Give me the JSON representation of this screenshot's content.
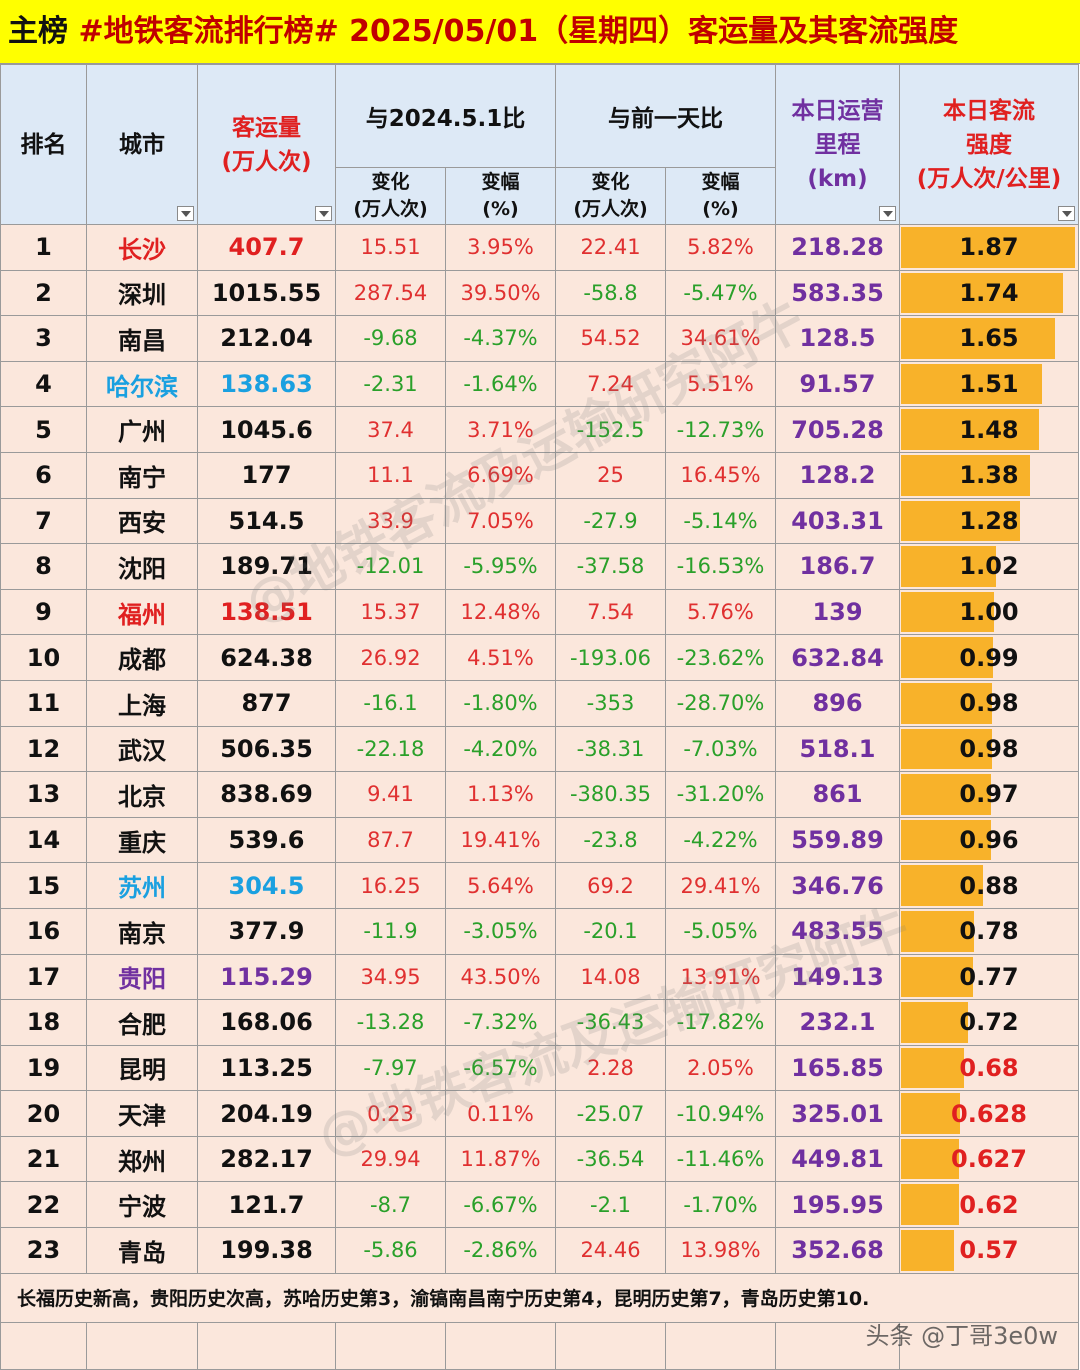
{
  "title": {
    "lead": "主榜",
    "text": " #地铁客流排行榜# 2025/05/01（星期四）客运量及其客流强度"
  },
  "colors": {
    "title_bg": "#ffff00",
    "title_text": "#c00000",
    "header_bg": "#dde9f6",
    "row_bg": "#fbe7dc",
    "positive": "#e03030",
    "negative": "#2aa02a",
    "km": "#7030a0",
    "bar": "#f8b22a",
    "city_changsha": "#e02020",
    "city_harbin": "#1aa0e0",
    "city_fuzhou": "#e02020",
    "city_suzhou": "#1aa0e0",
    "city_guiyang": "#7030a0"
  },
  "headers": {
    "rank": "排名",
    "city": "城市",
    "volume_1": "客运量",
    "volume_2": "(万人次)",
    "vs_last_year": "与2024.5.1比",
    "vs_prev_day": "与前一天比",
    "change_1": "变化",
    "change_2": "(万人次)",
    "pct_1": "变幅",
    "pct_2": "(%)",
    "change_b_1": "变化",
    "change_b_2": "(万人次)",
    "pct_b_1": "变幅",
    "pct_b_2": "(%)",
    "km_1": "本日运营",
    "km_2": "里程",
    "km_3": "(km)",
    "intensity_1": "本日客流",
    "intensity_2": "强度",
    "intensity_3": "(万人次/公里)",
    "filter_icon": "chevron-down-icon"
  },
  "rows": [
    {
      "rank": "1",
      "city": "长沙",
      "city_color": "#e02020",
      "volume": "407.7",
      "ly_change": "15.51",
      "ly_pct": "3.95%",
      "pd_change": "22.41",
      "pd_pct": "5.82%",
      "km": "218.28",
      "intensity": "1.87",
      "intensity_value": 1.87,
      "intensity_color": "#111111"
    },
    {
      "rank": "2",
      "city": "深圳",
      "city_color": "#111111",
      "volume": "1015.55",
      "ly_change": "287.54",
      "ly_pct": "39.50%",
      "pd_change": "-58.8",
      "pd_pct": "-5.47%",
      "km": "583.35",
      "intensity": "1.74",
      "intensity_value": 1.74,
      "intensity_color": "#111111"
    },
    {
      "rank": "3",
      "city": "南昌",
      "city_color": "#111111",
      "volume": "212.04",
      "ly_change": "-9.68",
      "ly_pct": "-4.37%",
      "pd_change": "54.52",
      "pd_pct": "34.61%",
      "km": "128.5",
      "intensity": "1.65",
      "intensity_value": 1.65,
      "intensity_color": "#111111"
    },
    {
      "rank": "4",
      "city": "哈尔滨",
      "city_color": "#1aa0e0",
      "volume": "138.63",
      "ly_change": "-2.31",
      "ly_pct": "-1.64%",
      "pd_change": "7.24",
      "pd_pct": "5.51%",
      "km": "91.57",
      "intensity": "1.51",
      "intensity_value": 1.51,
      "intensity_color": "#111111"
    },
    {
      "rank": "5",
      "city": "广州",
      "city_color": "#111111",
      "volume": "1045.6",
      "ly_change": "37.4",
      "ly_pct": "3.71%",
      "pd_change": "-152.5",
      "pd_pct": "-12.73%",
      "km": "705.28",
      "intensity": "1.48",
      "intensity_value": 1.48,
      "intensity_color": "#111111"
    },
    {
      "rank": "6",
      "city": "南宁",
      "city_color": "#111111",
      "volume": "177",
      "ly_change": "11.1",
      "ly_pct": "6.69%",
      "pd_change": "25",
      "pd_pct": "16.45%",
      "km": "128.2",
      "intensity": "1.38",
      "intensity_value": 1.38,
      "intensity_color": "#111111"
    },
    {
      "rank": "7",
      "city": "西安",
      "city_color": "#111111",
      "volume": "514.5",
      "ly_change": "33.9",
      "ly_pct": "7.05%",
      "pd_change": "-27.9",
      "pd_pct": "-5.14%",
      "km": "403.31",
      "intensity": "1.28",
      "intensity_value": 1.28,
      "intensity_color": "#111111"
    },
    {
      "rank": "8",
      "city": "沈阳",
      "city_color": "#111111",
      "volume": "189.71",
      "ly_change": "-12.01",
      "ly_pct": "-5.95%",
      "pd_change": "-37.58",
      "pd_pct": "-16.53%",
      "km": "186.7",
      "intensity": "1.02",
      "intensity_value": 1.02,
      "intensity_color": "#111111"
    },
    {
      "rank": "9",
      "city": "福州",
      "city_color": "#e02020",
      "volume": "138.51",
      "ly_change": "15.37",
      "ly_pct": "12.48%",
      "pd_change": "7.54",
      "pd_pct": "5.76%",
      "km": "139",
      "intensity": "1.00",
      "intensity_value": 1.0,
      "intensity_color": "#111111"
    },
    {
      "rank": "10",
      "city": "成都",
      "city_color": "#111111",
      "volume": "624.38",
      "ly_change": "26.92",
      "ly_pct": "4.51%",
      "pd_change": "-193.06",
      "pd_pct": "-23.62%",
      "km": "632.84",
      "intensity": "0.99",
      "intensity_value": 0.99,
      "intensity_color": "#111111"
    },
    {
      "rank": "11",
      "city": "上海",
      "city_color": "#111111",
      "volume": "877",
      "ly_change": "-16.1",
      "ly_pct": "-1.80%",
      "pd_change": "-353",
      "pd_pct": "-28.70%",
      "km": "896",
      "intensity": "0.98",
      "intensity_value": 0.98,
      "intensity_color": "#111111"
    },
    {
      "rank": "12",
      "city": "武汉",
      "city_color": "#111111",
      "volume": "506.35",
      "ly_change": "-22.18",
      "ly_pct": "-4.20%",
      "pd_change": "-38.31",
      "pd_pct": "-7.03%",
      "km": "518.1",
      "intensity": "0.98",
      "intensity_value": 0.98,
      "intensity_color": "#111111"
    },
    {
      "rank": "13",
      "city": "北京",
      "city_color": "#111111",
      "volume": "838.69",
      "ly_change": "9.41",
      "ly_pct": "1.13%",
      "pd_change": "-380.35",
      "pd_pct": "-31.20%",
      "km": "861",
      "intensity": "0.97",
      "intensity_value": 0.97,
      "intensity_color": "#111111"
    },
    {
      "rank": "14",
      "city": "重庆",
      "city_color": "#111111",
      "volume": "539.6",
      "ly_change": "87.7",
      "ly_pct": "19.41%",
      "pd_change": "-23.8",
      "pd_pct": "-4.22%",
      "km": "559.89",
      "intensity": "0.96",
      "intensity_value": 0.96,
      "intensity_color": "#111111"
    },
    {
      "rank": "15",
      "city": "苏州",
      "city_color": "#1aa0e0",
      "volume": "304.5",
      "ly_change": "16.25",
      "ly_pct": "5.64%",
      "pd_change": "69.2",
      "pd_pct": "29.41%",
      "km": "346.76",
      "intensity": "0.88",
      "intensity_value": 0.88,
      "intensity_color": "#111111"
    },
    {
      "rank": "16",
      "city": "南京",
      "city_color": "#111111",
      "volume": "377.9",
      "ly_change": "-11.9",
      "ly_pct": "-3.05%",
      "pd_change": "-20.1",
      "pd_pct": "-5.05%",
      "km": "483.55",
      "intensity": "0.78",
      "intensity_value": 0.78,
      "intensity_color": "#111111"
    },
    {
      "rank": "17",
      "city": "贵阳",
      "city_color": "#7030a0",
      "volume": "115.29",
      "ly_change": "34.95",
      "ly_pct": "43.50%",
      "pd_change": "14.08",
      "pd_pct": "13.91%",
      "km": "149.13",
      "intensity": "0.77",
      "intensity_value": 0.77,
      "intensity_color": "#111111"
    },
    {
      "rank": "18",
      "city": "合肥",
      "city_color": "#111111",
      "volume": "168.06",
      "ly_change": "-13.28",
      "ly_pct": "-7.32%",
      "pd_change": "-36.43",
      "pd_pct": "-17.82%",
      "km": "232.1",
      "intensity": "0.72",
      "intensity_value": 0.72,
      "intensity_color": "#111111"
    },
    {
      "rank": "19",
      "city": "昆明",
      "city_color": "#111111",
      "volume": "113.25",
      "ly_change": "-7.97",
      "ly_pct": "-6.57%",
      "pd_change": "2.28",
      "pd_pct": "2.05%",
      "km": "165.85",
      "intensity": "0.68",
      "intensity_value": 0.68,
      "intensity_color": "#e02020"
    },
    {
      "rank": "20",
      "city": "天津",
      "city_color": "#111111",
      "volume": "204.19",
      "ly_change": "0.23",
      "ly_pct": "0.11%",
      "pd_change": "-25.07",
      "pd_pct": "-10.94%",
      "km": "325.01",
      "intensity": "0.628",
      "intensity_value": 0.628,
      "intensity_color": "#e02020"
    },
    {
      "rank": "21",
      "city": "郑州",
      "city_color": "#111111",
      "volume": "282.17",
      "ly_change": "29.94",
      "ly_pct": "11.87%",
      "pd_change": "-36.54",
      "pd_pct": "-11.46%",
      "km": "449.81",
      "intensity": "0.627",
      "intensity_value": 0.627,
      "intensity_color": "#e02020"
    },
    {
      "rank": "22",
      "city": "宁波",
      "city_color": "#111111",
      "volume": "121.7",
      "ly_change": "-8.7",
      "ly_pct": "-6.67%",
      "pd_change": "-2.1",
      "pd_pct": "-1.70%",
      "km": "195.95",
      "intensity": "0.62",
      "intensity_value": 0.62,
      "intensity_color": "#e02020"
    },
    {
      "rank": "23",
      "city": "青岛",
      "city_color": "#111111",
      "volume": "199.38",
      "ly_change": "-5.86",
      "ly_pct": "-2.86%",
      "pd_change": "24.46",
      "pd_pct": "13.98%",
      "km": "352.68",
      "intensity": "0.57",
      "intensity_value": 0.57,
      "intensity_color": "#e02020"
    }
  ],
  "note": "长福历史新高，贵阳历史次高，苏哈历史第3，渝镐南昌南宁历史第4，昆明历史第7，青岛历史第10.",
  "watermark": "@地铁客流及运输研究阿牛",
  "credit": "头条 @丁哥3e0w"
}
